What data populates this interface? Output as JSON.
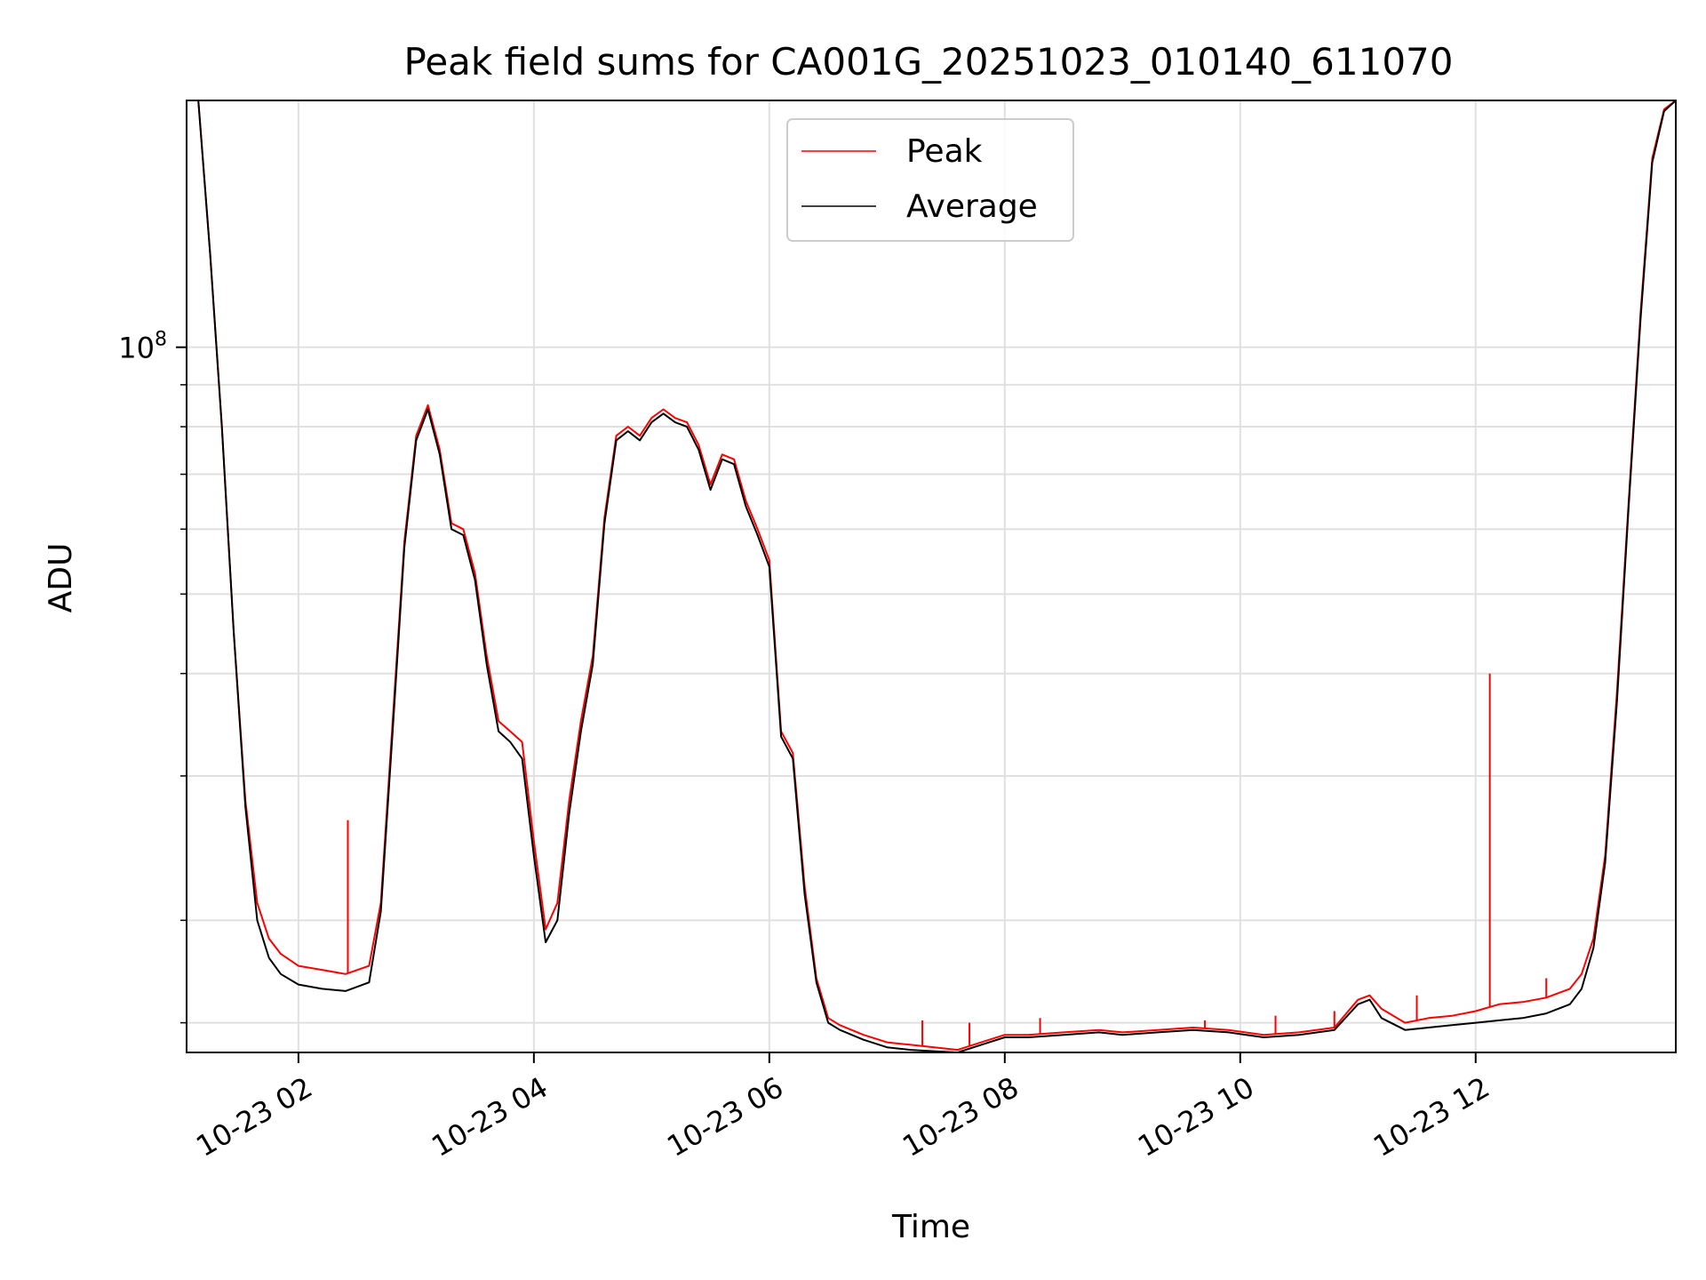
{
  "chart_data": {
    "type": "line",
    "title": "Peak field sums for CA001G_20251023_010140_611070",
    "xlabel": "Time",
    "ylabel": "ADU",
    "yscale": "log",
    "ylim": [
      13800000,
      200000000
    ],
    "xlim": [
      1.05,
      13.7
    ],
    "x_ticks": [
      {
        "value": 2,
        "label": "10-23 02"
      },
      {
        "value": 4,
        "label": "10-23 04"
      },
      {
        "value": 6,
        "label": "10-23 06"
      },
      {
        "value": 8,
        "label": "10-23 08"
      },
      {
        "value": 10,
        "label": "10-23 10"
      },
      {
        "value": 12,
        "label": "10-23 12"
      }
    ],
    "y_major_tick": {
      "value": 100000000,
      "label_base": "10",
      "label_exp": "8"
    },
    "y_minor_ticks": [
      15000000,
      20000000,
      30000000,
      40000000,
      50000000,
      60000000,
      70000000,
      80000000,
      90000000
    ],
    "grid": true,
    "legend_position": "top-center",
    "series": [
      {
        "name": "Peak",
        "color": "#ff0000",
        "x": [
          1.05,
          1.15,
          1.25,
          1.35,
          1.45,
          1.55,
          1.65,
          1.75,
          1.85,
          2.0,
          2.2,
          2.4,
          2.6,
          2.7,
          2.8,
          2.9,
          3.0,
          3.1,
          3.2,
          3.3,
          3.4,
          3.5,
          3.6,
          3.7,
          3.8,
          3.9,
          4.0,
          4.1,
          4.2,
          4.3,
          4.4,
          4.5,
          4.6,
          4.7,
          4.8,
          4.9,
          5.0,
          5.1,
          5.2,
          5.3,
          5.4,
          5.5,
          5.6,
          5.7,
          5.8,
          5.9,
          6.0,
          6.1,
          6.2,
          6.3,
          6.4,
          6.5,
          6.6,
          6.8,
          7.0,
          7.2,
          7.4,
          7.6,
          7.8,
          8.0,
          8.2,
          8.5,
          8.8,
          9.0,
          9.3,
          9.6,
          9.9,
          10.2,
          10.5,
          10.8,
          11.0,
          11.1,
          11.2,
          11.4,
          11.6,
          11.8,
          12.0,
          12.2,
          12.4,
          12.6,
          12.8,
          12.9,
          13.0,
          13.1,
          13.2,
          13.3,
          13.4,
          13.5,
          13.6,
          13.7
        ],
        "values": [
          200000000,
          200000000,
          130000000,
          80000000,
          45000000,
          28000000,
          21000000,
          19000000,
          18200000,
          17600000,
          17400000,
          17200000,
          17600000,
          21000000,
          35000000,
          58000000,
          78000000,
          85000000,
          75000000,
          61000000,
          60000000,
          53000000,
          42000000,
          35000000,
          34000000,
          33000000,
          25000000,
          19500000,
          21000000,
          28000000,
          35000000,
          42000000,
          62000000,
          78000000,
          80000000,
          78000000,
          82000000,
          84000000,
          82000000,
          81000000,
          76000000,
          68000000,
          74000000,
          73000000,
          65000000,
          60000000,
          55000000,
          34000000,
          32000000,
          22000000,
          17000000,
          15200000,
          14900000,
          14500000,
          14200000,
          14100000,
          14000000,
          13900000,
          14200000,
          14500000,
          14500000,
          14600000,
          14700000,
          14600000,
          14700000,
          14800000,
          14700000,
          14500000,
          14600000,
          14800000,
          16000000,
          16200000,
          15600000,
          15000000,
          15200000,
          15300000,
          15500000,
          15800000,
          15900000,
          16100000,
          16500000,
          17200000,
          19000000,
          24000000,
          38000000,
          65000000,
          110000000,
          170000000,
          195000000,
          200000000
        ],
        "spikes": [
          {
            "x": 2.42,
            "value": 26500000
          },
          {
            "x": 12.12,
            "value": 40000000
          },
          {
            "x": 7.3,
            "value": 15100000
          },
          {
            "x": 7.7,
            "value": 15000000
          },
          {
            "x": 8.3,
            "value": 15200000
          },
          {
            "x": 9.7,
            "value": 15100000
          },
          {
            "x": 10.3,
            "value": 15300000
          },
          {
            "x": 10.8,
            "value": 15500000
          },
          {
            "x": 11.5,
            "value": 16200000
          },
          {
            "x": 12.6,
            "value": 17000000
          }
        ]
      },
      {
        "name": "Average",
        "color": "#000000",
        "x": [
          1.05,
          1.15,
          1.25,
          1.35,
          1.45,
          1.55,
          1.65,
          1.75,
          1.85,
          2.0,
          2.2,
          2.4,
          2.6,
          2.7,
          2.8,
          2.9,
          3.0,
          3.1,
          3.2,
          3.3,
          3.4,
          3.5,
          3.6,
          3.7,
          3.8,
          3.9,
          4.0,
          4.1,
          4.2,
          4.3,
          4.4,
          4.5,
          4.6,
          4.7,
          4.8,
          4.9,
          5.0,
          5.1,
          5.2,
          5.3,
          5.4,
          5.5,
          5.6,
          5.7,
          5.8,
          5.9,
          6.0,
          6.1,
          6.2,
          6.3,
          6.4,
          6.5,
          6.6,
          6.8,
          7.0,
          7.2,
          7.4,
          7.6,
          7.8,
          8.0,
          8.2,
          8.5,
          8.8,
          9.0,
          9.3,
          9.6,
          9.9,
          10.2,
          10.5,
          10.8,
          11.0,
          11.1,
          11.2,
          11.4,
          11.6,
          11.8,
          12.0,
          12.2,
          12.4,
          12.6,
          12.8,
          12.9,
          13.0,
          13.1,
          13.2,
          13.3,
          13.4,
          13.5,
          13.6,
          13.7
        ],
        "values": [
          200000000,
          200000000,
          130000000,
          80000000,
          45000000,
          27500000,
          20000000,
          18000000,
          17200000,
          16700000,
          16500000,
          16400000,
          16800000,
          20500000,
          34000000,
          57000000,
          77000000,
          84000000,
          74000000,
          60000000,
          59000000,
          52000000,
          41000000,
          34000000,
          33000000,
          31500000,
          24000000,
          18800000,
          20000000,
          27000000,
          34000000,
          41000000,
          61000000,
          77000000,
          79000000,
          77000000,
          81000000,
          83000000,
          81000000,
          80000000,
          75000000,
          67000000,
          73000000,
          72000000,
          64000000,
          59000000,
          54000000,
          33500000,
          31500000,
          21500000,
          16800000,
          15000000,
          14700000,
          14300000,
          14000000,
          13900000,
          13850000,
          13800000,
          14100000,
          14400000,
          14400000,
          14500000,
          14600000,
          14500000,
          14600000,
          14700000,
          14600000,
          14400000,
          14500000,
          14700000,
          15800000,
          16000000,
          15200000,
          14700000,
          14800000,
          14900000,
          15000000,
          15100000,
          15200000,
          15400000,
          15800000,
          16500000,
          18500000,
          23500000,
          37000000,
          64000000,
          108000000,
          168000000,
          194000000,
          200000000
        ]
      }
    ]
  }
}
